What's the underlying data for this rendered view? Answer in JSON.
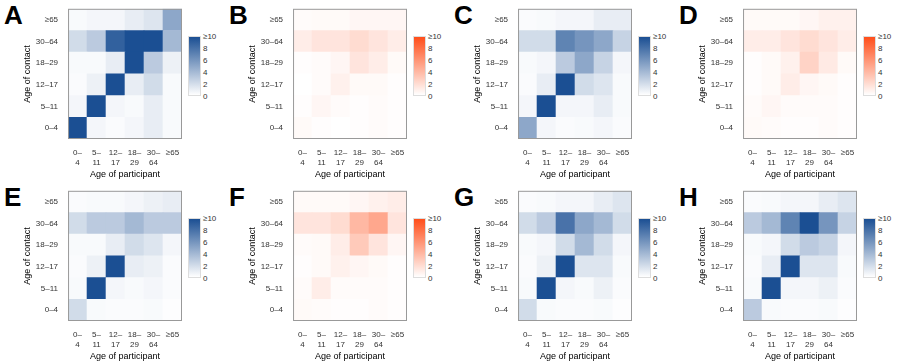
{
  "chart_data": [
    {
      "type": "heatmap",
      "title": "A",
      "x_label": "Age of participant",
      "y_label": "Age of contact",
      "categories": [
        "0–4",
        "5–11",
        "12–17",
        "18–29",
        "30–64",
        "≥65"
      ],
      "y_categories": [
        "0–4",
        "5–11",
        "12–17",
        "18–29",
        "30–64",
        "≥65"
      ],
      "cells": [
        [
          12,
          0.5,
          0.2,
          0.5,
          1,
          0.3
        ],
        [
          0.5,
          14,
          0.5,
          0.3,
          1,
          0.3
        ],
        [
          0.2,
          0.8,
          15,
          1,
          2,
          0.3
        ],
        [
          0.3,
          0.3,
          1,
          11,
          3,
          0.8
        ],
        [
          2,
          3,
          9,
          12,
          12,
          4
        ],
        [
          0.3,
          0.5,
          0.5,
          1,
          1.5,
          5
        ]
      ],
      "color": "#1b4f93",
      "colorbar": {
        "range": [
          0,
          10
        ],
        "ticks": [
          0,
          2,
          4,
          6,
          8,
          {
            "value": 10,
            "label": "≥10"
          }
        ]
      }
    },
    {
      "type": "heatmap",
      "title": "B",
      "x_label": "Age of participant",
      "y_label": "Age of contact",
      "categories": [
        "0–4",
        "5–11",
        "12–17",
        "18–29",
        "30–64",
        "≥65"
      ],
      "y_categories": [
        "0–4",
        "5–11",
        "12–17",
        "18–29",
        "30–64",
        "≥65"
      ],
      "cells": [
        [
          0.3,
          0.1,
          0,
          0.1,
          0.2,
          0.1
        ],
        [
          0.1,
          0.5,
          0.2,
          0.1,
          0.2,
          0.1
        ],
        [
          0,
          0.2,
          0.8,
          0.3,
          0.3,
          0.1
        ],
        [
          0.1,
          0.2,
          0.5,
          1.5,
          1,
          0.3
        ],
        [
          1,
          1.5,
          1.5,
          2,
          1.5,
          1
        ],
        [
          0.2,
          0.3,
          0.3,
          0.5,
          0.5,
          0.5
        ]
      ],
      "color": "#ff4e1a",
      "colorbar": {
        "range": [
          0,
          10
        ],
        "ticks": [
          0,
          2,
          4,
          6,
          8,
          {
            "value": 10,
            "label": "≥10"
          }
        ]
      }
    },
    {
      "type": "heatmap",
      "title": "C",
      "x_label": "Age of participant",
      "y_label": "Age of contact",
      "categories": [
        "0–4",
        "5–11",
        "12–17",
        "18–29",
        "30–64",
        "≥65"
      ],
      "y_categories": [
        "0–4",
        "5–11",
        "12–17",
        "18–29",
        "30–64",
        "≥65"
      ],
      "cells": [
        [
          5,
          0.5,
          0.2,
          0.3,
          0.5,
          0.2
        ],
        [
          0.5,
          11,
          0.5,
          0.5,
          1,
          0.3
        ],
        [
          0.2,
          1,
          11,
          2,
          1.5,
          0.3
        ],
        [
          0.3,
          0.5,
          3,
          5,
          2.5,
          0.5
        ],
        [
          2,
          2,
          7,
          6,
          5,
          2.5
        ],
        [
          0.2,
          0.3,
          0.5,
          0.5,
          1,
          1
        ]
      ],
      "color": "#1b4f93",
      "colorbar": {
        "range": [
          0,
          10
        ],
        "ticks": [
          0,
          2,
          4,
          6,
          8,
          {
            "value": 10,
            "label": "≥10"
          }
        ]
      }
    },
    {
      "type": "heatmap",
      "title": "D",
      "x_label": "Age of participant",
      "y_label": "Age of contact",
      "categories": [
        "0–4",
        "5–11",
        "12–17",
        "18–29",
        "30–64",
        "≥65"
      ],
      "y_categories": [
        "0–4",
        "5–11",
        "12–17",
        "18–29",
        "30–64",
        "≥65"
      ],
      "cells": [
        [
          0.3,
          0.2,
          0.1,
          0.1,
          0.2,
          0.1
        ],
        [
          0.2,
          0.5,
          0.2,
          0.2,
          0.2,
          0.1
        ],
        [
          0.1,
          0.3,
          1,
          0.5,
          0.3,
          0.1
        ],
        [
          0.1,
          0.3,
          0.8,
          2.5,
          1.2,
          0.3
        ],
        [
          1,
          1,
          1.5,
          2,
          1.5,
          1
        ],
        [
          0.3,
          0.3,
          0.3,
          0.5,
          0.8,
          0.8
        ]
      ],
      "color": "#ff4e1a",
      "colorbar": {
        "range": [
          0,
          10
        ],
        "ticks": [
          0,
          2,
          4,
          6,
          8,
          {
            "value": 10,
            "label": "≥10"
          }
        ]
      }
    },
    {
      "type": "heatmap",
      "title": "E",
      "x_label": "Age of participant",
      "y_label": "Age of contact",
      "categories": [
        "0–4",
        "5–11",
        "12–17",
        "18–29",
        "30–64",
        "≥65"
      ],
      "y_categories": [
        "0–4",
        "5–11",
        "12–17",
        "18–29",
        "30–64",
        "≥65"
      ],
      "cells": [
        [
          2,
          0.3,
          0.2,
          0.2,
          0.3,
          0.1
        ],
        [
          0.3,
          11,
          0.5,
          0.3,
          0.5,
          0.2
        ],
        [
          0.2,
          0.8,
          10,
          1,
          0.8,
          0.2
        ],
        [
          0.3,
          0.3,
          1,
          2,
          1.5,
          0.5
        ],
        [
          2,
          3,
          3,
          4,
          3,
          3
        ],
        [
          0.2,
          0.3,
          0.3,
          0.5,
          0.8,
          1
        ]
      ],
      "color": "#1b4f93",
      "colorbar": {
        "range": [
          0,
          10
        ],
        "ticks": [
          0,
          2,
          4,
          6,
          8,
          {
            "value": 10,
            "label": "≥10"
          }
        ]
      }
    },
    {
      "type": "heatmap",
      "title": "F",
      "x_label": "Age of participant",
      "y_label": "Age of contact",
      "categories": [
        "0–4",
        "5–11",
        "12–17",
        "18–29",
        "30–64",
        "≥65"
      ],
      "y_categories": [
        "0–4",
        "5–11",
        "12–17",
        "18–29",
        "30–64",
        "≥65"
      ],
      "cells": [
        [
          0.3,
          0.2,
          0.1,
          0.1,
          0.2,
          0.1
        ],
        [
          0.2,
          1,
          0.2,
          0.2,
          0.2,
          0.1
        ],
        [
          0.1,
          0.3,
          0.8,
          0.5,
          0.3,
          0.1
        ],
        [
          0.2,
          0.3,
          1,
          3,
          1.5,
          0.5
        ],
        [
          1.5,
          1.5,
          2,
          4,
          5,
          1.5
        ],
        [
          0.3,
          0.3,
          0.3,
          0.5,
          0.8,
          1
        ]
      ],
      "color": "#ff4e1a",
      "colorbar": {
        "range": [
          0,
          10
        ],
        "ticks": [
          0,
          2,
          4,
          6,
          8,
          {
            "value": 10,
            "label": "≥10"
          }
        ]
      }
    },
    {
      "type": "heatmap",
      "title": "G",
      "x_label": "Age of participant",
      "y_label": "Age of contact",
      "categories": [
        "0–4",
        "5–11",
        "12–17",
        "18–29",
        "30–64",
        "≥65"
      ],
      "y_categories": [
        "0–4",
        "5–11",
        "12–17",
        "18–29",
        "30–64",
        "≥65"
      ],
      "cells": [
        [
          2,
          0.3,
          0.2,
          0.2,
          0.3,
          0.1
        ],
        [
          0.3,
          11,
          0.5,
          0.3,
          0.8,
          0.2
        ],
        [
          0.2,
          0.8,
          11,
          1.5,
          1.5,
          0.3
        ],
        [
          0.3,
          0.5,
          2,
          4,
          2,
          0.5
        ],
        [
          2,
          3,
          8,
          5,
          4,
          2
        ],
        [
          0.2,
          0.3,
          0.5,
          0.5,
          1,
          1.5
        ]
      ],
      "color": "#1b4f93",
      "colorbar": {
        "range": [
          0,
          10
        ],
        "ticks": [
          0,
          2,
          4,
          6,
          8,
          {
            "value": 10,
            "label": "≥10"
          }
        ]
      }
    },
    {
      "type": "heatmap",
      "title": "H",
      "x_label": "Age of participant",
      "y_label": "Age of contact",
      "categories": [
        "0–4",
        "5–11",
        "12–17",
        "18–29",
        "30–64",
        "≥65"
      ],
      "y_categories": [
        "0–4",
        "5–11",
        "12–17",
        "18–29",
        "30–64",
        "≥65"
      ],
      "cells": [
        [
          3,
          0.3,
          0.2,
          0.2,
          0.3,
          0.1
        ],
        [
          0.3,
          11,
          0.5,
          0.5,
          0.8,
          0.2
        ],
        [
          0.2,
          1,
          10,
          1.5,
          1.5,
          0.3
        ],
        [
          0.3,
          0.5,
          2,
          3,
          2.5,
          0.5
        ],
        [
          3,
          4,
          7,
          10,
          6,
          2.5
        ],
        [
          0.2,
          0.3,
          0.5,
          0.5,
          1,
          1.5
        ]
      ],
      "color": "#1b4f93",
      "colorbar": {
        "range": [
          0,
          10
        ],
        "ticks": [
          0,
          2,
          4,
          6,
          8,
          {
            "value": 10,
            "label": "≥10"
          }
        ]
      }
    }
  ]
}
